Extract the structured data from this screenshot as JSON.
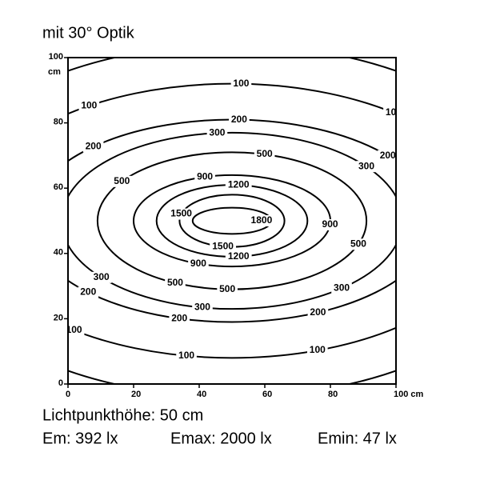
{
  "chart_data": {
    "type": "contour",
    "title": "mit 30° Optik",
    "xlim": [
      0,
      100
    ],
    "ylim": [
      0,
      100
    ],
    "xticks": [
      0,
      20,
      40,
      60,
      80,
      {
        "value": 100,
        "label": "100 cm"
      }
    ],
    "yticks": [
      0,
      20,
      40,
      60,
      80,
      100
    ],
    "ylabel": "cm",
    "center": [
      50,
      50
    ],
    "color": "#000000",
    "contours": [
      {
        "level": null,
        "rx": 95,
        "ry": 54
      },
      {
        "level": 100,
        "rx": 80,
        "ry": 42
      },
      {
        "level": 200,
        "rx": 62,
        "ry": 31
      },
      {
        "level": 300,
        "rx": 52,
        "ry": 27
      },
      {
        "level": 500,
        "rx": 41,
        "ry": 21
      },
      {
        "level": 900,
        "rx": 30,
        "ry": 14
      },
      {
        "level": 1200,
        "rx": 23,
        "ry": 11
      },
      {
        "level": 1500,
        "rx": 16,
        "ry": 8
      },
      {
        "level": 1800,
        "rx": 12,
        "ry": 4
      }
    ],
    "notes": [
      "Lichtpunkthöhe: 50 cm",
      "Em: 392 lx",
      "Emax: 2000 lx",
      "Emin: 47 lx"
    ]
  }
}
